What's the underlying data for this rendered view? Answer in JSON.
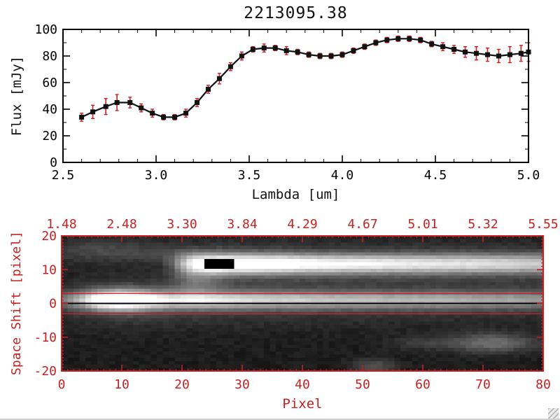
{
  "title": "2213095.38",
  "colors": {
    "axis_black": "#000000",
    "panel_red": "#c42222",
    "error_red": "#cc1c1c",
    "marker_black": "#111111",
    "background": "#ffffff"
  },
  "icons": {
    "resize_grip": "resize-grip-icon"
  },
  "chart_data": [
    {
      "type": "line",
      "title": "2213095.38",
      "xlabel": "Lambda [um]",
      "ylabel": "Flux [mJy]",
      "xlim": [
        2.5,
        5.0
      ],
      "ylim": [
        0,
        100
      ],
      "grid": false,
      "marker": "square",
      "x_ticks": [
        2.5,
        3.0,
        3.5,
        4.0,
        4.5,
        5.0
      ],
      "x_tick_labels": [
        "2.5",
        "3.0",
        "3.5",
        "4.0",
        "4.5",
        "5.0"
      ],
      "y_ticks": [
        0,
        20,
        40,
        60,
        80,
        100
      ],
      "y_tick_labels": [
        "0",
        "20",
        "40",
        "60",
        "80",
        "100"
      ],
      "x": [
        2.6,
        2.66,
        2.73,
        2.79,
        2.86,
        2.92,
        2.98,
        3.04,
        3.1,
        3.16,
        3.22,
        3.28,
        3.34,
        3.4,
        3.46,
        3.52,
        3.58,
        3.64,
        3.7,
        3.76,
        3.82,
        3.88,
        3.94,
        4.0,
        4.06,
        4.12,
        4.18,
        4.24,
        4.3,
        4.36,
        4.42,
        4.48,
        4.54,
        4.6,
        4.66,
        4.72,
        4.78,
        4.84,
        4.9,
        4.96,
        5.0
      ],
      "y": [
        34,
        38,
        42,
        45,
        45,
        41,
        37,
        34,
        34,
        37,
        45,
        55,
        63,
        72,
        80,
        85,
        86,
        86,
        84,
        83,
        81,
        80,
        80,
        81,
        84,
        87,
        90,
        92,
        93,
        93,
        92,
        89,
        87,
        85,
        83,
        82,
        81,
        80,
        81,
        82,
        83
      ],
      "yerr": [
        3,
        5,
        6,
        6,
        4,
        3,
        3,
        2,
        2,
        3,
        3,
        3,
        4,
        3,
        3,
        2,
        3,
        2,
        3,
        2,
        2,
        2,
        2,
        2,
        2,
        2,
        2,
        2,
        2,
        2,
        2,
        2,
        3,
        3,
        4,
        5,
        5,
        5,
        6,
        6,
        7
      ]
    },
    {
      "type": "heatmap",
      "xlabel": "Pixel",
      "ylabel": "Space Shift [pixel]",
      "xlim": [
        0,
        80
      ],
      "ylim": [
        -20,
        20
      ],
      "x_ticks": [
        0,
        10,
        20,
        30,
        40,
        50,
        60,
        70,
        80
      ],
      "x_tick_labels": [
        "0",
        "10",
        "20",
        "30",
        "40",
        "50",
        "60",
        "70",
        "80"
      ],
      "y_ticks": [
        20,
        10,
        0,
        -10,
        -20
      ],
      "y_tick_labels": [
        "20",
        "10",
        "0",
        "-10",
        "-20"
      ],
      "top_axis_labels": [
        "1.48",
        "2.48",
        "3.30",
        "3.84",
        "4.29",
        "4.67",
        "5.01",
        "5.32",
        "5.55"
      ],
      "top_axis_positions": [
        0,
        10,
        20,
        30,
        40,
        50,
        60,
        70,
        80
      ],
      "aperture_lines_y": [
        3,
        -3
      ],
      "trace_line_y": 0,
      "background_level": 0.05,
      "noise_amp": 0.05,
      "bands": [
        {
          "name": "main-trace-core",
          "y_center": 1.0,
          "sigma": 1.8,
          "amp_x": [
            0,
            3,
            6,
            9,
            12,
            15,
            18,
            22,
            26,
            30,
            35,
            40,
            45,
            50,
            55,
            60,
            65,
            70,
            75,
            80
          ],
          "amp_v": [
            0.28,
            0.5,
            0.85,
            1.0,
            0.95,
            0.8,
            0.7,
            0.75,
            0.7,
            0.65,
            0.6,
            0.6,
            0.55,
            0.55,
            0.5,
            0.5,
            0.5,
            0.45,
            0.45,
            0.4
          ]
        },
        {
          "name": "main-trace-wings",
          "y_center": 0.5,
          "sigma": 5.0,
          "amp_x": [
            0,
            10,
            20,
            40,
            60,
            80
          ],
          "amp_v": [
            0.06,
            0.17,
            0.13,
            0.1,
            0.09,
            0.07
          ]
        },
        {
          "name": "upper-trace-core",
          "y_center": 12.0,
          "sigma": 2.0,
          "amp_x": [
            0,
            16,
            18,
            20,
            22,
            24,
            26,
            30,
            35,
            40,
            45,
            50,
            55,
            60,
            65,
            70,
            75,
            80
          ],
          "amp_v": [
            0,
            0,
            0.15,
            0.5,
            0.9,
            1.0,
            1.0,
            1.0,
            0.95,
            0.85,
            0.8,
            0.78,
            0.75,
            0.72,
            0.7,
            0.68,
            0.65,
            0.6
          ]
        },
        {
          "name": "upper-trace-wings",
          "y_center": 12.0,
          "sigma": 4.5,
          "amp_x": [
            0,
            18,
            22,
            26,
            35,
            50,
            80
          ],
          "amp_v": [
            0,
            0,
            0.08,
            0.16,
            0.15,
            0.12,
            0.1
          ]
        }
      ],
      "blobs": [
        {
          "x": 9,
          "y": 1,
          "sx": 4,
          "sy": 2.5,
          "amp": 0.3
        },
        {
          "x": 22,
          "y": 7,
          "sx": 3,
          "sy": 3,
          "amp": 0.22
        },
        {
          "x": 6,
          "y": 16,
          "sx": 7,
          "sy": 2.5,
          "amp": 0.16
        },
        {
          "x": 18,
          "y": 15,
          "sx": 4,
          "sy": 2,
          "amp": 0.12
        },
        {
          "x": 72,
          "y": -12,
          "sx": 5,
          "sy": 2,
          "amp": 0.3
        },
        {
          "x": 60,
          "y": -12,
          "sx": 4,
          "sy": 1.5,
          "amp": 0.1
        },
        {
          "x": 52,
          "y": -19,
          "sx": 2.5,
          "sy": 1.5,
          "amp": 0.2
        }
      ],
      "mask_rect": {
        "x0": 23.5,
        "x1": 28.5,
        "y0": 10.5,
        "y1": 13.5
      }
    }
  ]
}
